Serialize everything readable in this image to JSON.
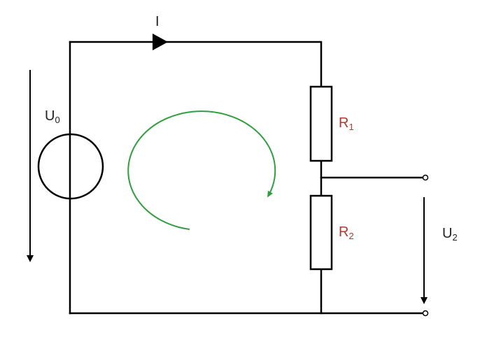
{
  "diagram": {
    "current_label": "I",
    "source": {
      "label_main": "U",
      "label_sub": "0"
    },
    "resistor_1": {
      "label_main": "R",
      "label_sub": "1"
    },
    "resistor_2": {
      "label_main": "R",
      "label_sub": "2"
    },
    "output_voltage": {
      "label_main": "U",
      "label_sub": "2"
    },
    "colors": {
      "wire": "#000000",
      "resistor_label": "#b03a2e",
      "mesh_arrow": "#2e9e3e",
      "text": "#222222"
    }
  }
}
